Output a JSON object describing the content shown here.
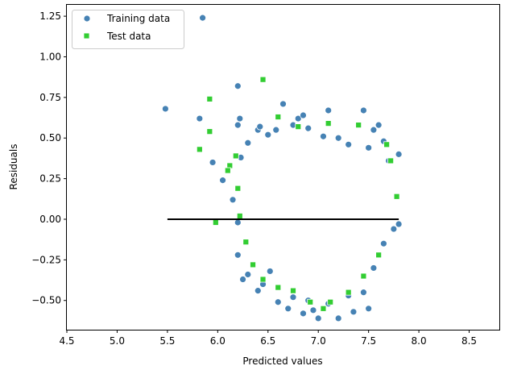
{
  "chart_data": {
    "type": "scatter",
    "xlabel": "Predicted values",
    "ylabel": "Residuals",
    "xlim": [
      4.5,
      8.8
    ],
    "ylim": [
      -0.68,
      1.32
    ],
    "xticks": [
      "4.5",
      "5.0",
      "5.5",
      "6.0",
      "6.5",
      "7.0",
      "7.5",
      "8.0",
      "8.5"
    ],
    "yticks": [
      "−0.50",
      "−0.25",
      "0.00",
      "0.25",
      "0.50",
      "0.75",
      "1.00",
      "1.25"
    ],
    "grid": false,
    "legend_position": "top-left",
    "hline": {
      "y": 0.0,
      "x_from": 5.5,
      "x_to": 7.8,
      "color": "#000000"
    },
    "series": [
      {
        "name": "Training data",
        "marker": "circle",
        "color": "#4682B4",
        "points": [
          [
            5.48,
            0.68
          ],
          [
            5.85,
            1.24
          ],
          [
            5.82,
            0.62
          ],
          [
            5.95,
            0.35
          ],
          [
            6.05,
            0.24
          ],
          [
            6.2,
            0.82
          ],
          [
            6.2,
            0.58
          ],
          [
            6.22,
            0.62
          ],
          [
            6.23,
            0.38
          ],
          [
            6.3,
            0.47
          ],
          [
            6.4,
            0.55
          ],
          [
            6.42,
            0.57
          ],
          [
            6.5,
            0.52
          ],
          [
            6.58,
            0.55
          ],
          [
            6.65,
            0.71
          ],
          [
            6.75,
            0.58
          ],
          [
            6.8,
            0.62
          ],
          [
            6.85,
            0.64
          ],
          [
            6.9,
            0.56
          ],
          [
            7.05,
            0.51
          ],
          [
            7.1,
            0.67
          ],
          [
            7.2,
            0.5
          ],
          [
            7.3,
            0.46
          ],
          [
            7.45,
            0.67
          ],
          [
            7.5,
            0.44
          ],
          [
            7.55,
            0.55
          ],
          [
            7.6,
            0.58
          ],
          [
            7.65,
            0.48
          ],
          [
            7.7,
            0.36
          ],
          [
            7.8,
            0.4
          ],
          [
            6.15,
            0.12
          ],
          [
            6.2,
            -0.02
          ],
          [
            6.2,
            -0.22
          ],
          [
            6.25,
            -0.37
          ],
          [
            6.3,
            -0.34
          ],
          [
            6.4,
            -0.44
          ],
          [
            6.45,
            -0.4
          ],
          [
            6.52,
            -0.32
          ],
          [
            6.6,
            -0.51
          ],
          [
            6.7,
            -0.55
          ],
          [
            6.75,
            -0.48
          ],
          [
            6.85,
            -0.58
          ],
          [
            6.9,
            -0.5
          ],
          [
            6.95,
            -0.56
          ],
          [
            7.0,
            -0.61
          ],
          [
            7.1,
            -0.52
          ],
          [
            7.2,
            -0.61
          ],
          [
            7.3,
            -0.47
          ],
          [
            7.35,
            -0.57
          ],
          [
            7.45,
            -0.45
          ],
          [
            7.5,
            -0.55
          ],
          [
            7.55,
            -0.3
          ],
          [
            7.65,
            -0.15
          ],
          [
            7.75,
            -0.06
          ],
          [
            7.8,
            -0.03
          ]
        ]
      },
      {
        "name": "Test data",
        "marker": "square",
        "color": "#32CD32",
        "points": [
          [
            6.45,
            0.86
          ],
          [
            5.92,
            0.74
          ],
          [
            5.92,
            0.54
          ],
          [
            5.82,
            0.43
          ],
          [
            6.12,
            0.33
          ],
          [
            6.1,
            0.3
          ],
          [
            6.18,
            0.39
          ],
          [
            5.98,
            -0.02
          ],
          [
            6.6,
            0.63
          ],
          [
            6.8,
            0.57
          ],
          [
            7.1,
            0.59
          ],
          [
            7.4,
            0.58
          ],
          [
            7.72,
            0.36
          ],
          [
            7.68,
            0.46
          ],
          [
            7.78,
            0.14
          ],
          [
            6.2,
            0.19
          ],
          [
            6.22,
            0.02
          ],
          [
            6.28,
            -0.14
          ],
          [
            6.35,
            -0.28
          ],
          [
            6.45,
            -0.37
          ],
          [
            6.6,
            -0.42
          ],
          [
            6.75,
            -0.44
          ],
          [
            6.92,
            -0.51
          ],
          [
            7.05,
            -0.55
          ],
          [
            7.12,
            -0.51
          ],
          [
            7.3,
            -0.45
          ],
          [
            7.45,
            -0.35
          ],
          [
            7.6,
            -0.22
          ]
        ]
      }
    ]
  }
}
